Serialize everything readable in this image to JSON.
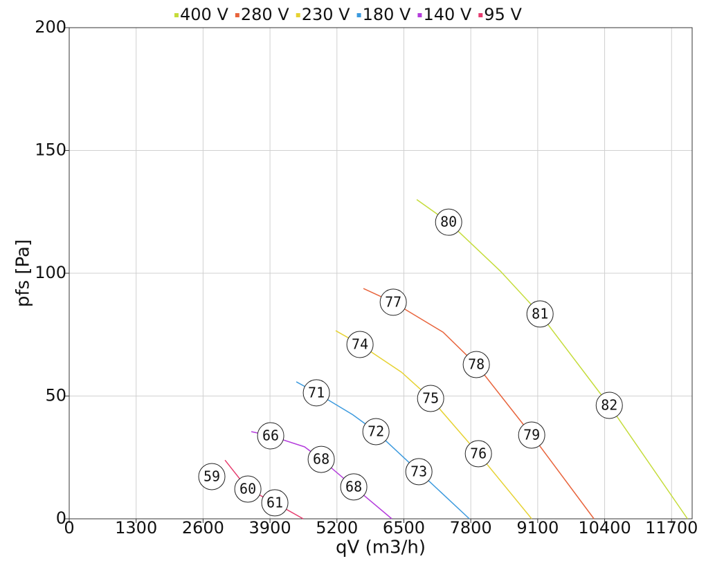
{
  "chart_data": {
    "type": "line",
    "x_label": "qV (m3/h)",
    "y_label": "pfs [Pa]",
    "xlim": [
      0,
      12100
    ],
    "xticks": [
      0,
      1300,
      2600,
      3900,
      5200,
      6500,
      7800,
      9100,
      10400,
      11700
    ],
    "ylim": [
      0,
      200
    ],
    "yticks": [
      0,
      50,
      100,
      150,
      200
    ],
    "grid": true,
    "legend": "top",
    "series": [
      {
        "name": "400 V",
        "color": "#c5dc3a",
        "x": [
          6750,
          7370,
          8378,
          9145,
          10490,
          12010
        ],
        "values": [
          130,
          120.8,
          100.8,
          83.4,
          46.2,
          0
        ]
      },
      {
        "name": "280 V",
        "color": "#e8643c",
        "x": [
          5715,
          6294,
          7262,
          7907,
          8983,
          10193
        ],
        "values": [
          93.8,
          88.2,
          76,
          62.8,
          34.1,
          0
        ]
      },
      {
        "name": "230 V",
        "color": "#e6d232",
        "x": [
          5177,
          5648,
          6455,
          7020,
          7948,
          8983
        ],
        "values": [
          76.6,
          71,
          59.7,
          49,
          26.5,
          0
        ]
      },
      {
        "name": "180 V",
        "color": "#3c9ade",
        "x": [
          4411,
          4801,
          5514,
          5958,
          6792,
          7773
        ],
        "values": [
          55.8,
          51.3,
          42.3,
          35.5,
          19.2,
          0
        ]
      },
      {
        "name": "140 V",
        "color": "#b43cdc",
        "x": [
          3537,
          3913,
          4572,
          4895,
          5527,
          6266
        ],
        "values": [
          35.5,
          33.8,
          29.3,
          24.2,
          13,
          0
        ]
      },
      {
        "name": "95 V",
        "color": "#e63c6e",
        "x": [
          3026,
          3470,
          3994,
          4545
        ],
        "values": [
          23.9,
          12.1,
          6.5,
          0
        ]
      }
    ],
    "annotations": [
      {
        "x": 7370,
        "y": 120.8,
        "text": "80"
      },
      {
        "x": 9145,
        "y": 83.4,
        "text": "81"
      },
      {
        "x": 10490,
        "y": 46.2,
        "text": "82"
      },
      {
        "x": 6294,
        "y": 88.2,
        "text": "77"
      },
      {
        "x": 7907,
        "y": 62.8,
        "text": "78"
      },
      {
        "x": 8983,
        "y": 34.1,
        "text": "79"
      },
      {
        "x": 5648,
        "y": 71,
        "text": "74"
      },
      {
        "x": 7020,
        "y": 49,
        "text": "75"
      },
      {
        "x": 7948,
        "y": 26.5,
        "text": "76"
      },
      {
        "x": 4801,
        "y": 51.3,
        "text": "71"
      },
      {
        "x": 5958,
        "y": 35.5,
        "text": "72"
      },
      {
        "x": 6792,
        "y": 19.2,
        "text": "73"
      },
      {
        "x": 3913,
        "y": 33.8,
        "text": "66"
      },
      {
        "x": 4895,
        "y": 24.2,
        "text": "68"
      },
      {
        "x": 5527,
        "y": 13,
        "text": "68"
      },
      {
        "x": 2770,
        "y": 17.2,
        "text": "59"
      },
      {
        "x": 3470,
        "y": 12.1,
        "text": "60"
      },
      {
        "x": 3994,
        "y": 6.5,
        "text": "61"
      }
    ]
  }
}
